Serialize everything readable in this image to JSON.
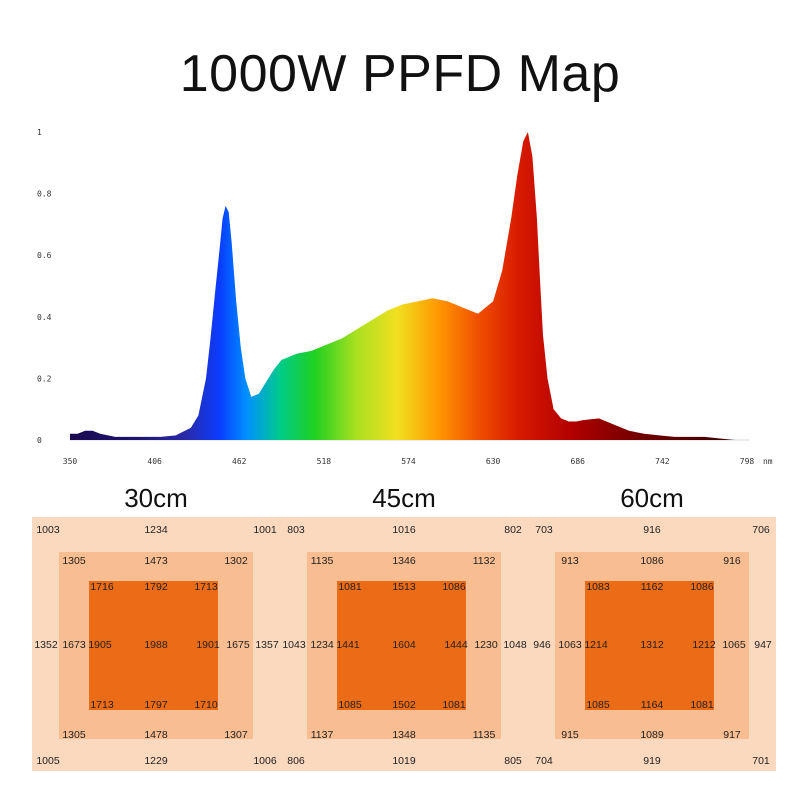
{
  "title": "1000W PPFD Map",
  "chart_data": [
    {
      "type": "area",
      "title": "",
      "xlabel": "",
      "ylabel": "",
      "x_unit": "nm",
      "xlim": [
        350,
        800
      ],
      "ylim": [
        0,
        1
      ],
      "x_ticks": [
        "350",
        "406",
        "462",
        "518",
        "574",
        "630",
        "686",
        "742",
        "798"
      ],
      "y_ticks": [
        "0",
        "0.2",
        "0.4",
        "0.6",
        "0.8",
        "1"
      ],
      "fill": "visible-spectrum gradient",
      "series": [
        {
          "x": [
            350,
            355,
            360,
            365,
            370,
            380,
            390,
            400,
            410,
            420,
            430,
            435,
            440,
            443,
            446,
            449,
            451,
            453,
            455,
            457,
            460,
            463,
            466,
            470,
            475,
            480,
            485,
            490,
            500,
            510,
            520,
            530,
            540,
            550,
            560,
            570,
            580,
            590,
            600,
            610,
            620,
            630,
            636,
            642,
            646,
            650,
            653,
            656,
            659,
            661,
            663,
            666,
            670,
            675,
            680,
            685,
            690,
            700,
            710,
            720,
            730,
            740,
            750,
            760,
            770,
            780,
            790,
            800
          ],
          "y": [
            0.02,
            0.02,
            0.03,
            0.03,
            0.02,
            0.01,
            0.01,
            0.01,
            0.01,
            0.015,
            0.04,
            0.08,
            0.2,
            0.33,
            0.48,
            0.62,
            0.72,
            0.76,
            0.74,
            0.64,
            0.45,
            0.3,
            0.2,
            0.14,
            0.15,
            0.19,
            0.23,
            0.26,
            0.28,
            0.29,
            0.31,
            0.33,
            0.36,
            0.39,
            0.42,
            0.44,
            0.45,
            0.46,
            0.45,
            0.43,
            0.41,
            0.45,
            0.55,
            0.72,
            0.86,
            0.97,
            1.0,
            0.92,
            0.72,
            0.52,
            0.34,
            0.2,
            0.1,
            0.07,
            0.06,
            0.06,
            0.065,
            0.07,
            0.05,
            0.03,
            0.02,
            0.015,
            0.01,
            0.01,
            0.01,
            0.005,
            0,
            0
          ]
        }
      ]
    },
    {
      "type": "heatmap",
      "title": "30cm",
      "outer": {
        "corners": [
          "1003",
          "1001",
          "1005",
          "1006"
        ],
        "top_mid": "1234",
        "bottom_mid": "1229",
        "left_mid": "1352",
        "right_mid": "1357"
      },
      "middle": {
        "corners": [
          "1305",
          "1302",
          "1305",
          "1307"
        ],
        "top_mid": "1473",
        "bottom_mid": "1478",
        "left_mid": "1673",
        "right_mid": "1675"
      },
      "inner": {
        "corners": [
          "1716",
          "1713",
          "1713",
          "1710"
        ],
        "top_mid": "1792",
        "bottom_mid": "1797",
        "left_mid": "1905",
        "right_mid": "1901",
        "center": "1988"
      }
    },
    {
      "type": "heatmap",
      "title": "45cm",
      "outer": {
        "corners": [
          "803",
          "802",
          "806",
          "805"
        ],
        "top_mid": "1016",
        "bottom_mid": "1019",
        "left_mid": "1043",
        "right_mid": "1048"
      },
      "middle": {
        "corners": [
          "1135",
          "1132",
          "1137",
          "1135"
        ],
        "top_mid": "1346",
        "bottom_mid": "1348",
        "left_mid": "1234",
        "right_mid": "1230"
      },
      "inner": {
        "corners": [
          "1081",
          "1086",
          "1085",
          "1081"
        ],
        "top_mid": "1513",
        "bottom_mid": "1502",
        "left_mid": "1441",
        "right_mid": "1444",
        "center": "1604"
      }
    },
    {
      "type": "heatmap",
      "title": "60cm",
      "outer": {
        "corners": [
          "703",
          "706",
          "704",
          "701"
        ],
        "top_mid": "916",
        "bottom_mid": "919",
        "left_mid": "946",
        "right_mid": "947"
      },
      "middle": {
        "corners": [
          "913",
          "916",
          "915",
          "917"
        ],
        "top_mid": "1086",
        "bottom_mid": "1089",
        "left_mid": "1063",
        "right_mid": "1065"
      },
      "inner": {
        "corners": [
          "1083",
          "1086",
          "1085",
          "1081"
        ],
        "top_mid": "1162",
        "bottom_mid": "1164",
        "left_mid": "1214",
        "right_mid": "1212",
        "center": "1312"
      }
    }
  ]
}
